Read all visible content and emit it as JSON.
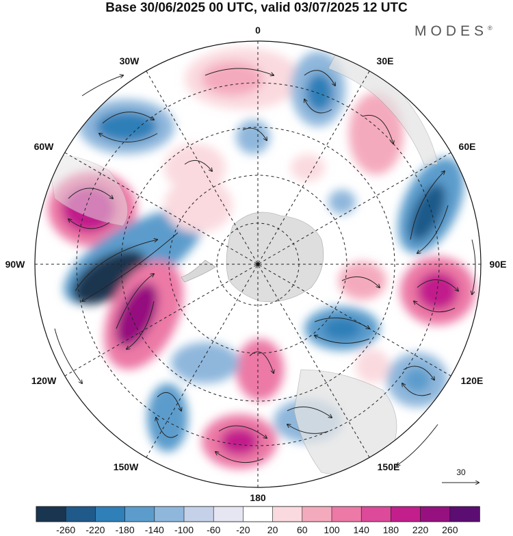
{
  "title": "Base 30/06/2025 00 UTC, valid 03/07/2025 12 UTC",
  "brand": "MODES",
  "brand_mark": "®",
  "longitude_labels": {
    "top": "0",
    "e30": "30E",
    "e60": "60E",
    "e90": "90E",
    "e120": "120E",
    "e150": "150E",
    "bottom": "180",
    "w150": "150W",
    "w120": "120W",
    "w90": "90W",
    "w60": "60W",
    "w30": "30W"
  },
  "reference_vector": {
    "label": "30"
  },
  "colorbar": {
    "colors": [
      "#1a3550",
      "#1f5a8a",
      "#2f7fb8",
      "#5b9ccc",
      "#8fb7dc",
      "#c4d1e8",
      "#e6e6f2",
      "#ffffff",
      "#fadadf",
      "#f4aabd",
      "#ec79a6",
      "#dd4a9a",
      "#c21f8c",
      "#96117f",
      "#5c0d72"
    ],
    "ticks": [
      "-260",
      "-220",
      "-180",
      "-140",
      "-100",
      "-60",
      "-20",
      "20",
      "60",
      "100",
      "140",
      "180",
      "220",
      "260"
    ]
  },
  "colors": {
    "strong_neg": "#1f5a8a",
    "neg": "#5b9ccc",
    "weak_neg": "#c4d1e8",
    "weak_pos": "#fadadf",
    "pos": "#ec79a6",
    "strong_pos": "#96117f",
    "land": "#d9d9d9"
  }
}
